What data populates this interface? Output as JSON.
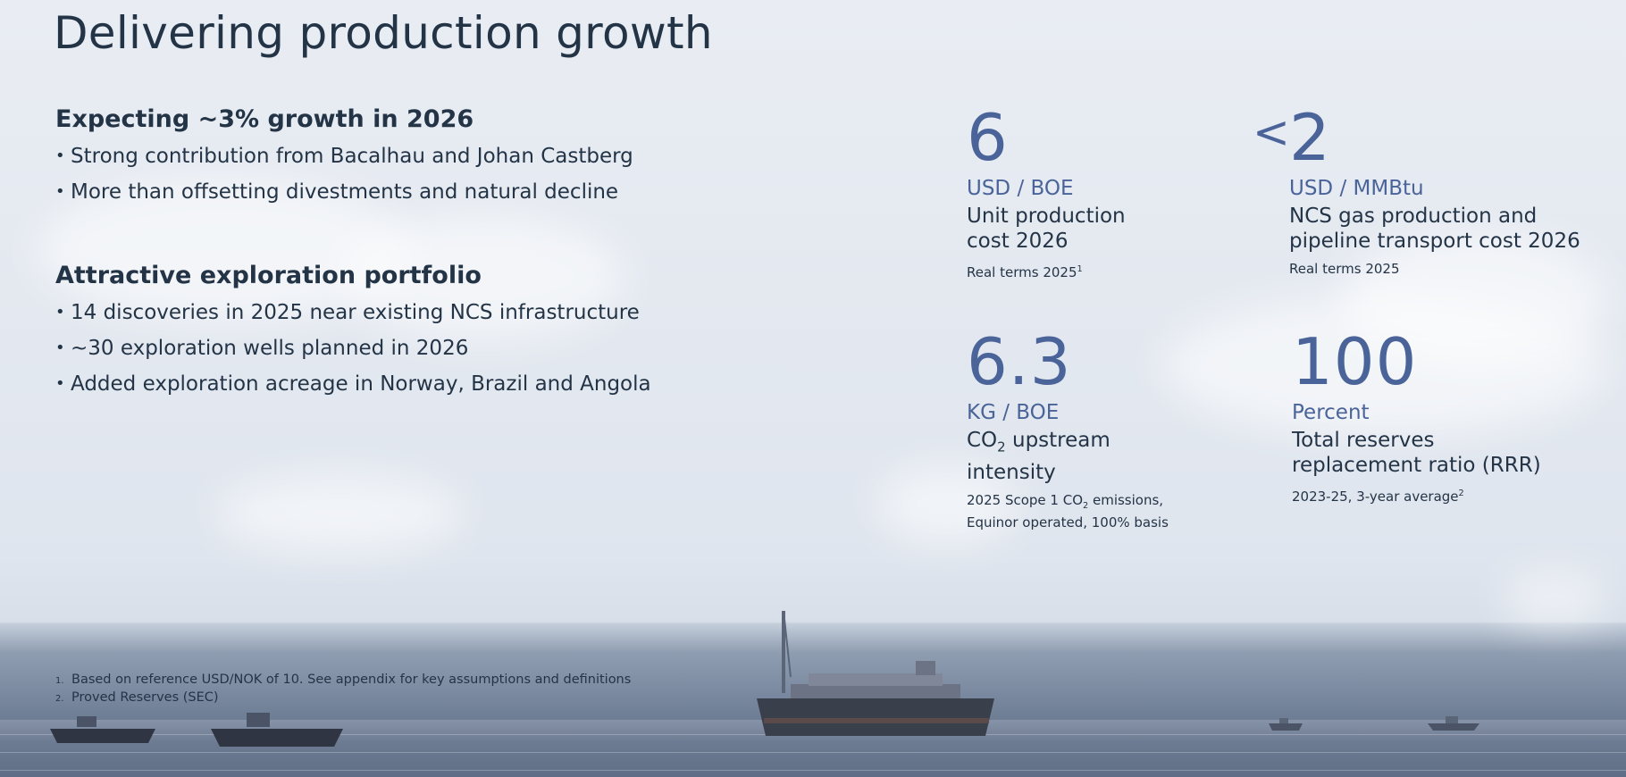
{
  "slide": {
    "title": "Delivering production growth"
  },
  "sections": [
    {
      "heading": "Expecting ~3% growth in 2026",
      "bullets": [
        "Strong contribution from Bacalhau and Johan Castberg",
        "More than offsetting divestments and natural decline"
      ]
    },
    {
      "heading": "Attractive exploration portfolio",
      "bullets": [
        "14 discoveries in 2025 near existing NCS infrastructure",
        "~30 exploration wells planned in 2026",
        "Added exploration acreage in Norway, Brazil and Angola"
      ]
    }
  ],
  "metrics": {
    "unit_cost": {
      "value": "6",
      "unit": "USD / BOE",
      "desc_line1": "Unit production",
      "desc_line2": "cost 2026",
      "note": "Real terms 2025",
      "note_ref": "1"
    },
    "gas_cost": {
      "prefix": "<",
      "value": "2",
      "unit": "USD / MMBtu",
      "desc_line1": "NCS gas production and",
      "desc_line2": "pipeline transport cost 2026",
      "note": "Real terms 2025"
    },
    "co2": {
      "value": "6.3",
      "unit": "KG / BOE",
      "desc_co": "CO",
      "desc_sub": "2",
      "desc_rest": " upstream",
      "desc_line2": "intensity",
      "note_pre": "2025 Scope 1 CO",
      "note_sub": "2",
      "note_post": " emissions,",
      "note_line2": "Equinor operated, 100% basis"
    },
    "rrr": {
      "value": "100",
      "unit": "Percent",
      "desc_line1": "Total reserves",
      "desc_line2": "replacement ratio (RRR)",
      "note": "2023-25, 3-year average",
      "note_ref": "2"
    }
  },
  "footnotes": [
    {
      "num": "1.",
      "text": "Based on reference USD/NOK of 10. See appendix for key assumptions and definitions"
    },
    {
      "num": "2.",
      "text": "Proved Reserves (SEC)"
    }
  ],
  "colors": {
    "accent": "#4a6499",
    "text": "#243447"
  }
}
